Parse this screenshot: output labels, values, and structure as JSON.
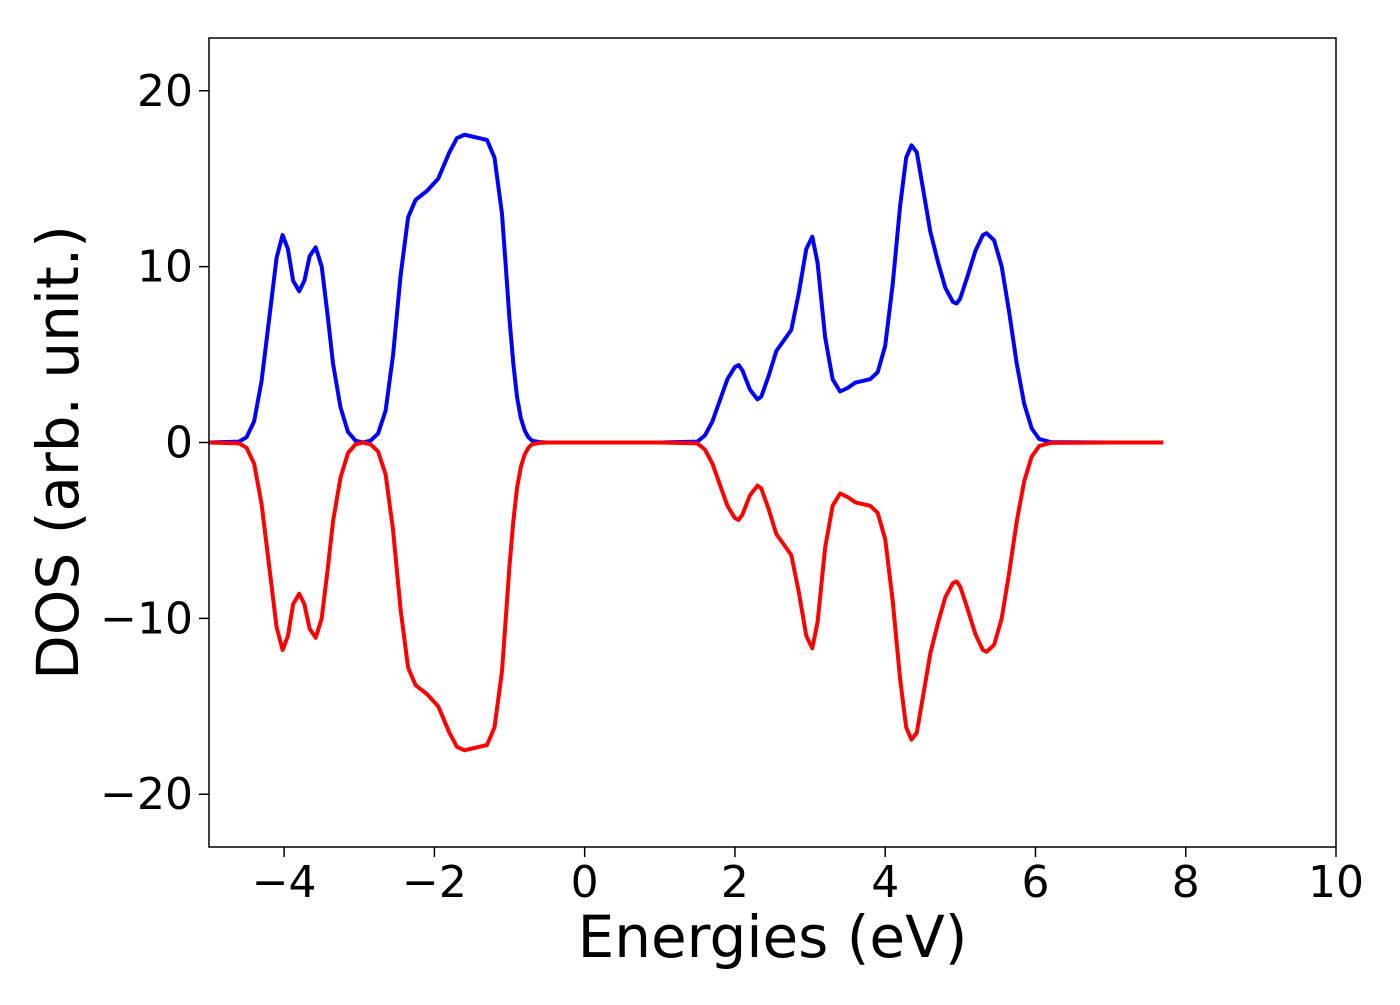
{
  "chart_data": {
    "type": "line",
    "title": "",
    "xlabel": "Energies (eV)",
    "ylabel": "DOS (arb. unit.)",
    "xlim": [
      -5,
      10
    ],
    "ylim": [
      -23,
      23
    ],
    "xticks": [
      -4,
      -2,
      0,
      2,
      4,
      6,
      8,
      10
    ],
    "xtick_labels": [
      "−4",
      "−2",
      "0",
      "2",
      "4",
      "6",
      "8",
      "10"
    ],
    "yticks": [
      20,
      10,
      0,
      -10,
      -20
    ],
    "ytick_labels": [
      "20",
      "10",
      "0",
      "−10",
      "−20"
    ],
    "grid": false,
    "legend": "none",
    "series": [
      {
        "color": "#0000ff",
        "x": [
          -5.0,
          -4.6,
          -4.5,
          -4.4,
          -4.3,
          -4.2,
          -4.1,
          -4.02,
          -3.95,
          -3.88,
          -3.8,
          -3.73,
          -3.66,
          -3.58,
          -3.5,
          -3.42,
          -3.35,
          -3.25,
          -3.15,
          -3.05,
          -2.95,
          -2.85,
          -2.75,
          -2.65,
          -2.55,
          -2.45,
          -2.35,
          -2.25,
          -2.1,
          -1.95,
          -1.8,
          -1.7,
          -1.6,
          -1.5,
          -1.4,
          -1.3,
          -1.2,
          -1.1,
          -1.05,
          -1.0,
          -0.95,
          -0.9,
          -0.85,
          -0.8,
          -0.75,
          -0.7,
          -0.6,
          -0.5,
          0.0,
          1.0,
          1.5,
          1.6,
          1.7,
          1.8,
          1.9,
          2.0,
          2.05,
          2.1,
          2.2,
          2.3,
          2.35,
          2.45,
          2.55,
          2.65,
          2.75,
          2.85,
          2.95,
          3.03,
          3.1,
          3.2,
          3.3,
          3.4,
          3.5,
          3.6,
          3.7,
          3.8,
          3.9,
          4.0,
          4.1,
          4.2,
          4.28,
          4.35,
          4.42,
          4.5,
          4.6,
          4.7,
          4.8,
          4.9,
          4.95,
          5.0,
          5.1,
          5.2,
          5.3,
          5.35,
          5.45,
          5.55,
          5.65,
          5.75,
          5.85,
          5.95,
          6.05,
          6.2,
          7.0,
          7.7
        ],
        "y": [
          0.0,
          0.05,
          0.3,
          1.2,
          3.5,
          7.0,
          10.5,
          11.8,
          11.0,
          9.2,
          8.6,
          9.2,
          10.6,
          11.1,
          10.0,
          7.2,
          4.5,
          2.0,
          0.6,
          0.1,
          0.0,
          0.1,
          0.5,
          1.8,
          5.0,
          9.5,
          12.8,
          13.8,
          14.3,
          15.0,
          16.5,
          17.3,
          17.5,
          17.4,
          17.3,
          17.2,
          16.2,
          13.0,
          10.0,
          7.0,
          4.5,
          2.6,
          1.4,
          0.7,
          0.3,
          0.1,
          0.02,
          0.0,
          0.0,
          0.0,
          0.05,
          0.4,
          1.2,
          2.4,
          3.6,
          4.3,
          4.4,
          4.1,
          3.0,
          2.45,
          2.6,
          3.8,
          5.2,
          5.8,
          6.4,
          8.5,
          11.0,
          11.7,
          10.2,
          6.0,
          3.6,
          2.9,
          3.1,
          3.4,
          3.5,
          3.6,
          4.0,
          5.5,
          9.0,
          13.5,
          16.2,
          16.9,
          16.5,
          14.5,
          12.0,
          10.3,
          8.8,
          8.0,
          7.9,
          8.2,
          9.5,
          10.9,
          11.8,
          11.9,
          11.5,
          10.0,
          7.4,
          4.5,
          2.2,
          0.8,
          0.2,
          0.02,
          0.0,
          0.0
        ]
      },
      {
        "color": "#ff0000",
        "x": [
          -5.0,
          -4.6,
          -4.5,
          -4.4,
          -4.3,
          -4.2,
          -4.1,
          -4.02,
          -3.95,
          -3.88,
          -3.8,
          -3.73,
          -3.66,
          -3.58,
          -3.5,
          -3.42,
          -3.35,
          -3.25,
          -3.15,
          -3.05,
          -2.95,
          -2.85,
          -2.75,
          -2.65,
          -2.55,
          -2.45,
          -2.35,
          -2.25,
          -2.1,
          -1.95,
          -1.8,
          -1.7,
          -1.6,
          -1.5,
          -1.4,
          -1.3,
          -1.2,
          -1.1,
          -1.05,
          -1.0,
          -0.95,
          -0.9,
          -0.85,
          -0.8,
          -0.75,
          -0.7,
          -0.6,
          -0.5,
          0.0,
          1.0,
          1.5,
          1.6,
          1.7,
          1.8,
          1.9,
          2.0,
          2.05,
          2.1,
          2.2,
          2.3,
          2.35,
          2.45,
          2.55,
          2.65,
          2.75,
          2.85,
          2.95,
          3.03,
          3.1,
          3.2,
          3.3,
          3.4,
          3.5,
          3.6,
          3.7,
          3.8,
          3.9,
          4.0,
          4.1,
          4.2,
          4.28,
          4.35,
          4.42,
          4.5,
          4.6,
          4.7,
          4.8,
          4.9,
          4.95,
          5.0,
          5.1,
          5.2,
          5.3,
          5.35,
          5.45,
          5.55,
          5.65,
          5.75,
          5.85,
          5.95,
          6.05,
          6.2,
          7.0,
          7.7
        ],
        "y": [
          0.0,
          -0.05,
          -0.3,
          -1.2,
          -3.5,
          -7.0,
          -10.5,
          -11.8,
          -11.0,
          -9.2,
          -8.6,
          -9.2,
          -10.6,
          -11.1,
          -10.0,
          -7.2,
          -4.5,
          -2.0,
          -0.6,
          -0.1,
          0.0,
          -0.1,
          -0.5,
          -1.8,
          -5.0,
          -9.5,
          -12.8,
          -13.8,
          -14.3,
          -15.0,
          -16.5,
          -17.3,
          -17.5,
          -17.4,
          -17.3,
          -17.2,
          -16.2,
          -13.0,
          -10.0,
          -7.0,
          -4.5,
          -2.6,
          -1.4,
          -0.7,
          -0.3,
          -0.1,
          -0.02,
          0.0,
          0.0,
          0.0,
          -0.05,
          -0.4,
          -1.2,
          -2.4,
          -3.6,
          -4.3,
          -4.4,
          -4.1,
          -3.0,
          -2.45,
          -2.6,
          -3.8,
          -5.2,
          -5.8,
          -6.4,
          -8.5,
          -11.0,
          -11.7,
          -10.2,
          -6.0,
          -3.6,
          -2.9,
          -3.1,
          -3.4,
          -3.5,
          -3.6,
          -4.0,
          -5.5,
          -9.0,
          -13.5,
          -16.2,
          -16.9,
          -16.5,
          -14.5,
          -12.0,
          -10.3,
          -8.8,
          -8.0,
          -7.9,
          -8.2,
          -9.5,
          -10.9,
          -11.8,
          -11.9,
          -11.5,
          -10.0,
          -7.4,
          -4.5,
          -2.2,
          -0.8,
          -0.2,
          -0.02,
          0.0,
          0.0
        ]
      }
    ]
  }
}
